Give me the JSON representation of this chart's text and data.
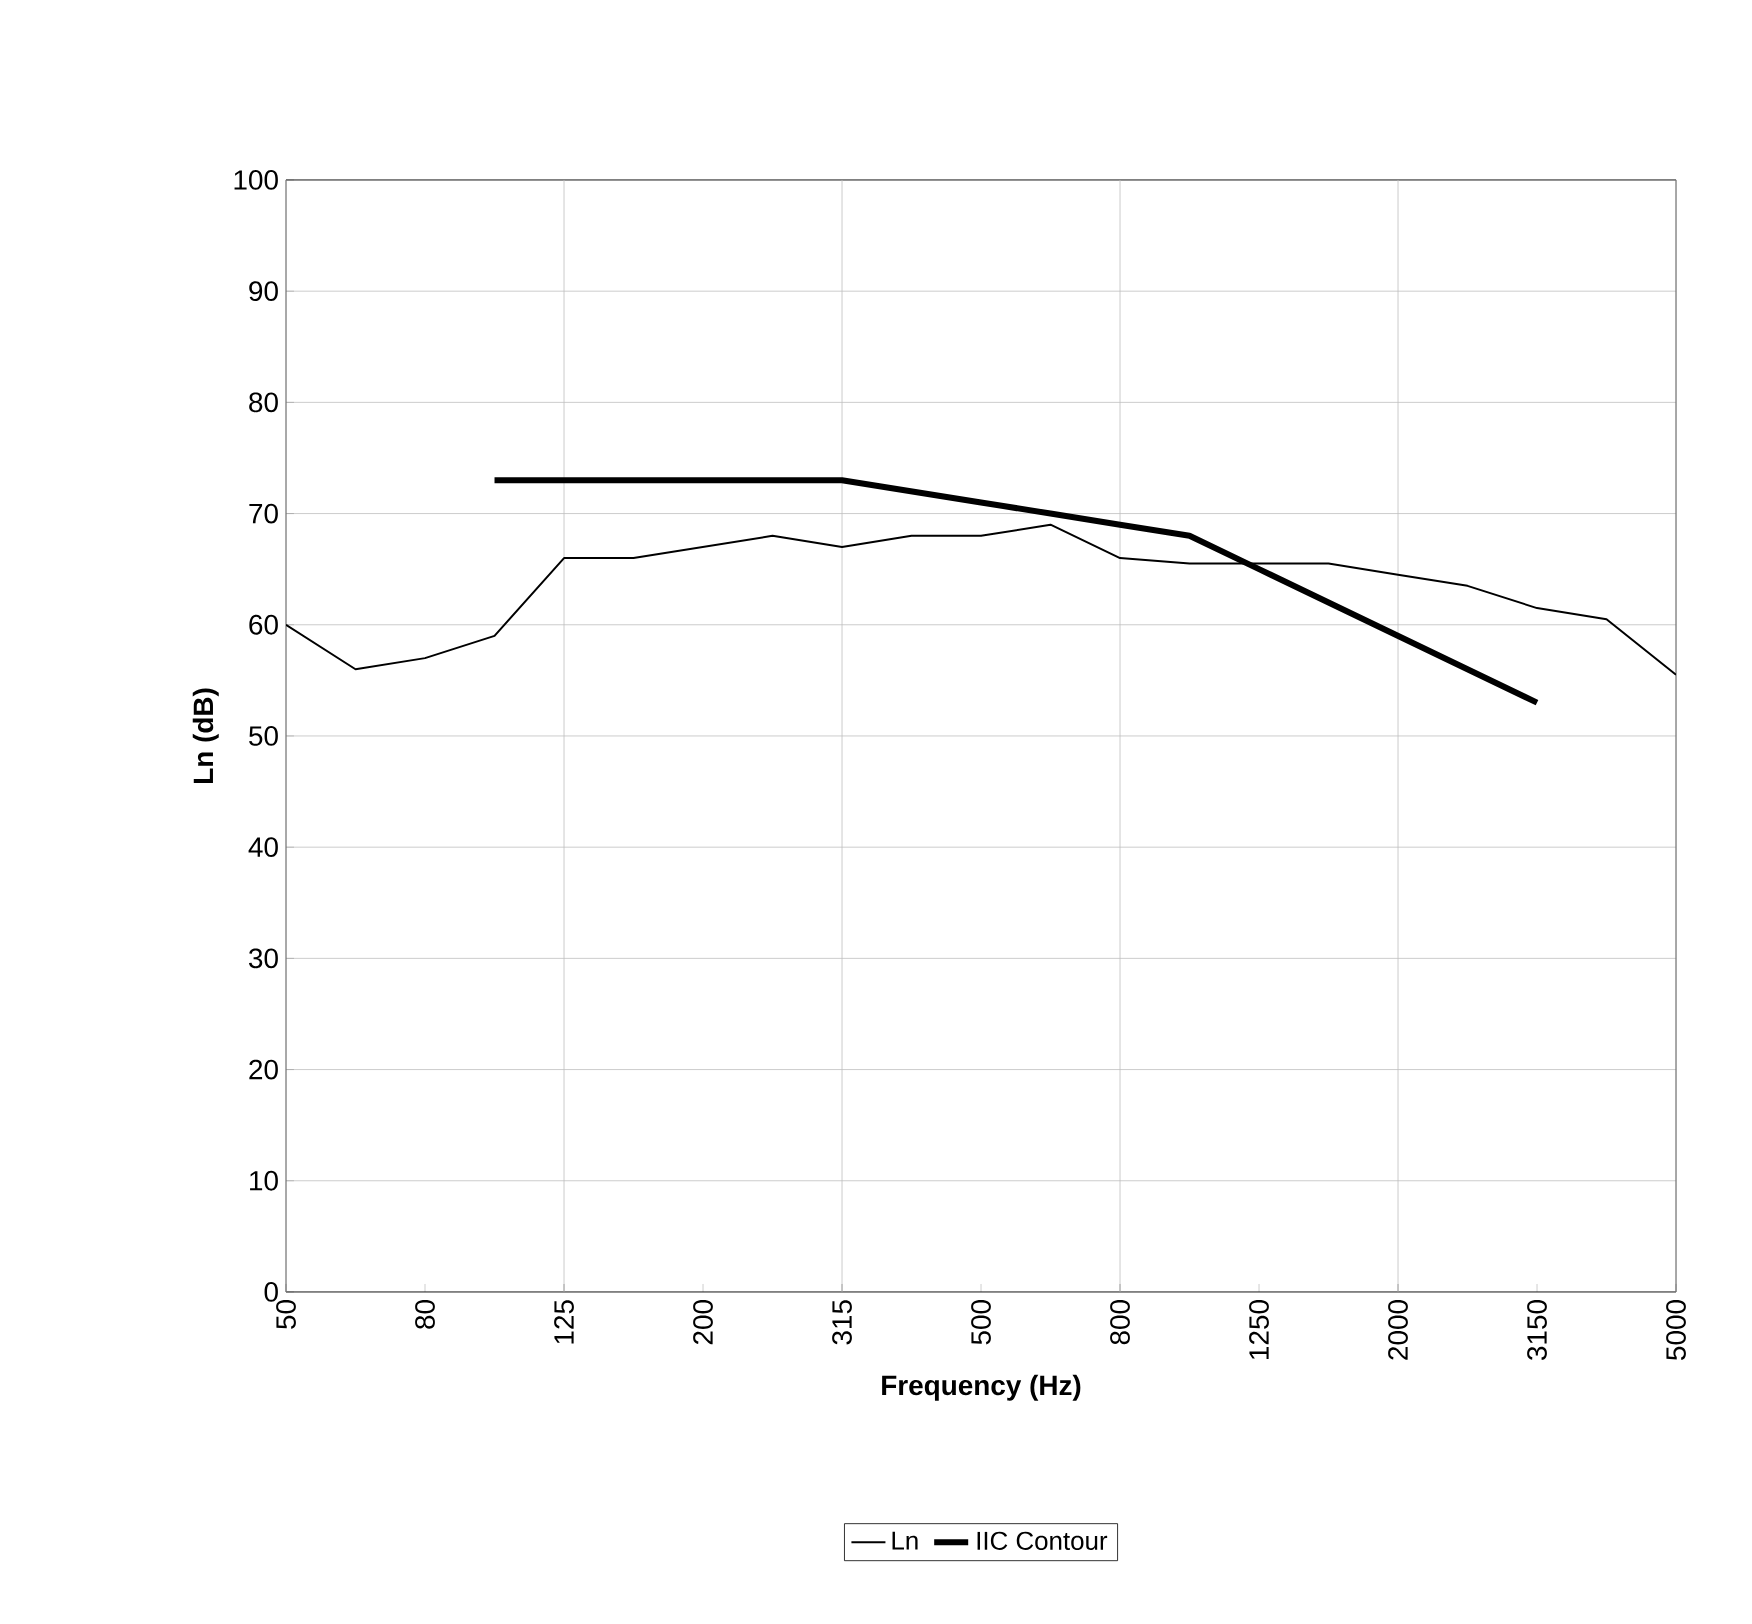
{
  "chart_data": {
    "type": "line",
    "categories": [
      "50",
      null,
      "80",
      null,
      "125",
      null,
      "200",
      null,
      "315",
      null,
      "500",
      null,
      "800",
      null,
      "1250",
      null,
      "2000",
      null,
      "3150",
      null,
      "5000"
    ],
    "series": [
      {
        "name": "Ln",
        "color": "#000000",
        "values": [
          60,
          56,
          57,
          59,
          66,
          66,
          67,
          68,
          67,
          68,
          68,
          69,
          66,
          65.5,
          65.5,
          65.5,
          64.5,
          63.5,
          61.5,
          60.5,
          55.5
        ]
      },
      {
        "name": "IIC Contour",
        "color": "#000000",
        "values": [
          null,
          null,
          null,
          73,
          73,
          73,
          73,
          73,
          73,
          72,
          71,
          70,
          69,
          68,
          65,
          62,
          59,
          56,
          53,
          null,
          null
        ]
      }
    ],
    "xlabel": "Frequency (Hz)",
    "ylabel": "Ln (dB)",
    "ylim": [
      0,
      100
    ],
    "yticks": [
      0,
      10,
      20,
      30,
      40,
      50,
      60,
      70,
      80,
      90,
      100
    ],
    "grid": true,
    "legend": "bottom",
    "marker": "none",
    "line_style": "solid"
  }
}
